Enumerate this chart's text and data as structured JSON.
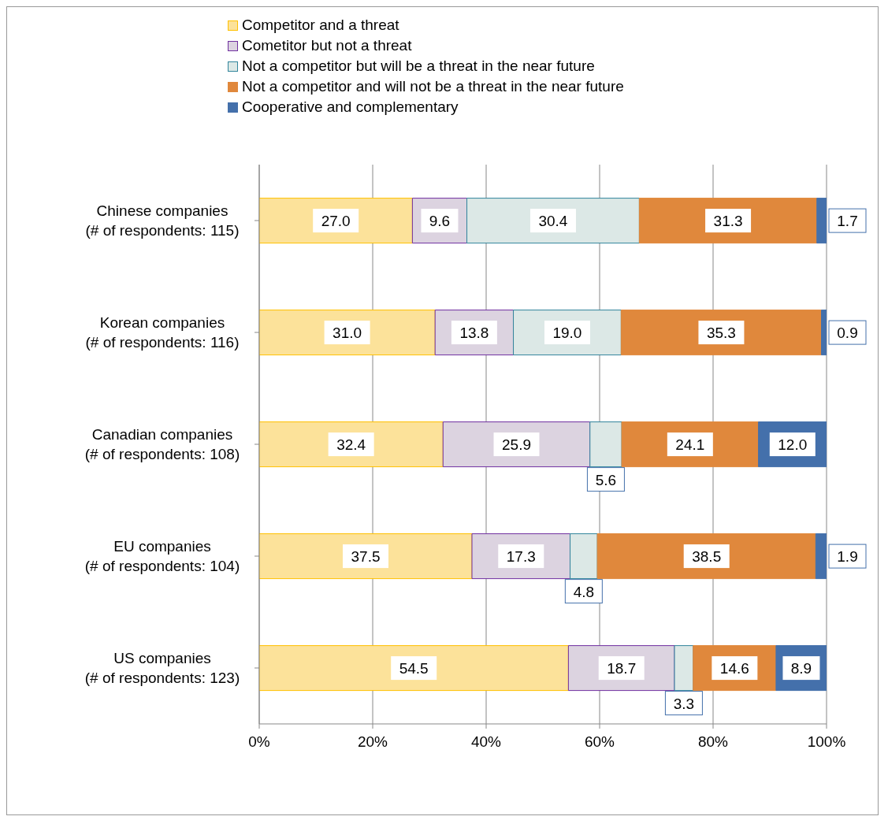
{
  "chart_data": {
    "type": "bar",
    "orientation": "horizontal",
    "stacked": true,
    "categories": [
      "Chinese companies\n(# of respondents: 115)",
      "Korean companies\n(# of respondents: 116)",
      "Canadian companies\n(# of respondents: 108)",
      "EU companies\n(# of respondents: 104)",
      "US companies\n(# of respondents: 123)"
    ],
    "series": [
      {
        "name": "Competitor and a threat",
        "color": "#fce29a",
        "values": [
          27.0,
          31.0,
          32.4,
          37.5,
          54.5
        ],
        "value_labels": [
          "27.0",
          "31.0",
          "32.4",
          "37.5",
          "54.5"
        ]
      },
      {
        "name": "Cometitor but not a threat",
        "color": "#dcd3e0",
        "values": [
          9.6,
          13.8,
          25.9,
          17.3,
          18.7
        ],
        "value_labels": [
          "9.6",
          "13.8",
          "25.9",
          "17.3",
          "18.7"
        ]
      },
      {
        "name": "Not a competitor but will be a threat in the near future",
        "color": "#dce8e6",
        "values": [
          30.4,
          19.0,
          5.6,
          4.8,
          3.3
        ],
        "value_labels": [
          "30.4",
          "19.0",
          "5.6",
          "4.8",
          "3.3"
        ]
      },
      {
        "name": "Not a competitor and will not be a threat in the near future",
        "color": "#e0883c",
        "values": [
          31.3,
          35.3,
          24.1,
          38.5,
          14.6
        ],
        "value_labels": [
          "31.3",
          "35.3",
          "24.1",
          "38.5",
          "14.6"
        ]
      },
      {
        "name": "Cooperative and complementary",
        "color": "#4470ab",
        "values": [
          1.7,
          0.9,
          12.0,
          1.9,
          8.9
        ],
        "value_labels": [
          "1.7",
          "0.9",
          "12.0",
          "1.9",
          "8.9"
        ]
      }
    ],
    "xlim": [
      0,
      100
    ],
    "xticks": [
      {
        "value": 0,
        "label": "0%"
      },
      {
        "value": 20,
        "label": "20%"
      },
      {
        "value": 40,
        "label": "40%"
      },
      {
        "value": 60,
        "label": "60%"
      },
      {
        "value": 80,
        "label": "80%"
      },
      {
        "value": 100,
        "label": "100%"
      }
    ],
    "grid": "x",
    "legend": "top"
  }
}
